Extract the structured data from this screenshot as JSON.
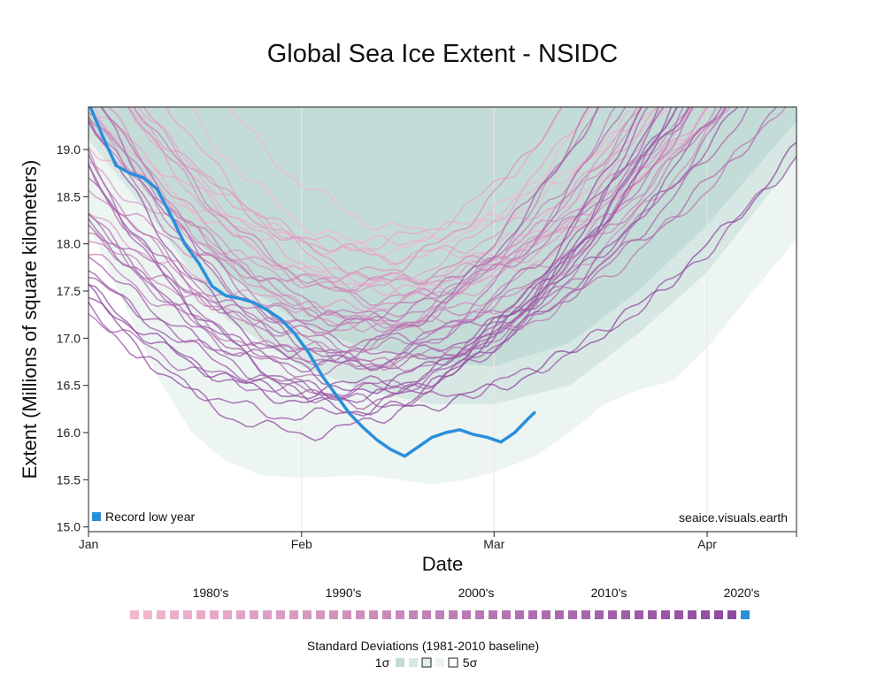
{
  "colors": {
    "record_low": "#2b8fdb",
    "band_1sigma": "#c4dcd7",
    "band_2sigma": "#d7e8e4",
    "band_5sigma": "#edf5f3",
    "year_colors_early": "#f4b7cf",
    "year_colors_late": "#8e4aa0"
  },
  "chart_data": {
    "type": "line",
    "title": "Global Sea Ice Extent - NSIDC",
    "xlabel": "Date",
    "ylabel": "Extent (Millions of square kilometers)",
    "x_ticks": [
      "Jan",
      "Feb",
      "Mar",
      "Apr"
    ],
    "x_tick_days": [
      0,
      31,
      59,
      90
    ],
    "xlim_days": [
      0,
      103
    ],
    "y_ticks": [
      "15.0",
      "15.5",
      "16.0",
      "16.5",
      "17.0",
      "17.5",
      "18.0",
      "18.5",
      "19.0"
    ],
    "ylim": [
      14.95,
      19.45
    ],
    "grid": "vertical at Feb, Mar, Apr",
    "legend_placement": "bottom-left",
    "legend_label": "Record low year",
    "watermark": "seaice.visuals.earth",
    "decade_labels": [
      "1980's",
      "1990's",
      "2000's",
      "2010's",
      "2020's"
    ],
    "std_dev_title": "Standard Deviations (1981-2010 baseline)",
    "std_dev_low": "1σ",
    "std_dev_high": "5σ",
    "num_years": 47,
    "bands": [
      {
        "name": "1σ",
        "day": [
          0,
          10,
          20,
          31,
          40,
          50,
          59,
          70,
          80,
          90,
          103
        ],
        "lower": [
          19.3,
          18.5,
          17.7,
          17.15,
          16.9,
          16.75,
          16.7,
          16.95,
          17.5,
          18.2,
          19.3
        ],
        "upper": [
          19.45,
          19.45,
          19.45,
          19.45,
          19.45,
          19.45,
          19.45,
          19.45,
          19.45,
          19.45,
          19.45
        ]
      },
      {
        "name": "2σ",
        "day": [
          0,
          10,
          20,
          31,
          40,
          50,
          59,
          70,
          80,
          90,
          103
        ],
        "lower": [
          19.1,
          18.2,
          17.2,
          16.7,
          16.45,
          16.3,
          16.3,
          16.5,
          17.05,
          17.7,
          18.9
        ],
        "upper": [
          19.45,
          19.45,
          19.45,
          19.45,
          19.45,
          19.45,
          19.45,
          19.45,
          19.45,
          19.45,
          19.45
        ]
      },
      {
        "name": "5σ",
        "day": [
          0,
          5,
          10,
          15,
          20,
          25,
          31,
          40,
          45,
          50,
          55,
          59,
          65,
          70,
          75,
          80,
          85,
          90,
          95,
          103
        ],
        "lower": [
          18.2,
          17.4,
          16.6,
          16.0,
          15.7,
          15.55,
          15.52,
          15.55,
          15.5,
          15.45,
          15.5,
          15.58,
          15.75,
          16.0,
          16.3,
          16.45,
          16.55,
          16.9,
          17.35,
          18.05
        ],
        "upper": [
          19.45,
          19.45,
          19.45,
          19.45,
          19.45,
          19.45,
          19.45,
          19.45,
          19.45,
          19.45,
          19.45,
          19.45,
          19.45,
          19.45,
          19.45,
          19.45,
          19.45,
          19.45,
          19.45,
          19.45
        ]
      }
    ],
    "series": [
      {
        "day": [
          0,
          2,
          4,
          6,
          8,
          10,
          12,
          14,
          16,
          18,
          20,
          22,
          24,
          26,
          28,
          30,
          32,
          34,
          36,
          38,
          40,
          42,
          44,
          46,
          48,
          50,
          52,
          54,
          56,
          58,
          60,
          62,
          64,
          65
        ],
        "values": [
          19.5,
          19.15,
          18.83,
          18.75,
          18.7,
          18.58,
          18.3,
          18.0,
          17.8,
          17.55,
          17.45,
          17.42,
          17.38,
          17.3,
          17.2,
          17.05,
          16.85,
          16.6,
          16.4,
          16.2,
          16.05,
          15.92,
          15.82,
          15.75,
          15.85,
          15.95,
          16.0,
          16.03,
          15.98,
          15.95,
          15.9,
          16.0,
          16.15,
          16.22
        ]
      }
    ]
  }
}
